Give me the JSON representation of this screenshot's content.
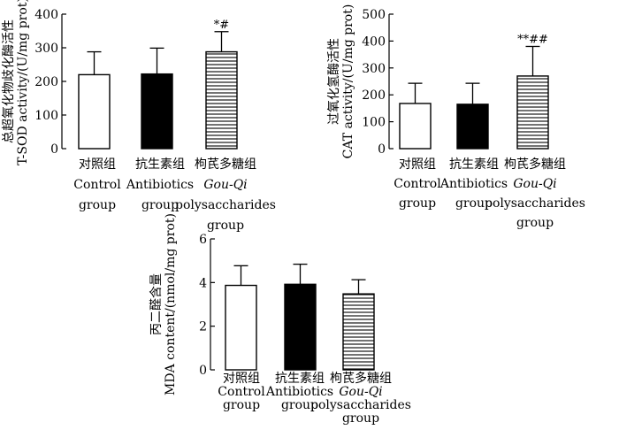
{
  "chart_data": [
    {
      "type": "bar",
      "ylabel_cn": "总超氧化物歧化酶活性",
      "ylabel_en": "T-SOD activity/(U/mg prot)",
      "ylim": [
        0,
        400
      ],
      "yticks": [
        0,
        100,
        200,
        300,
        400
      ],
      "categories": [
        {
          "lines": [
            "对照组",
            "Control",
            "group"
          ],
          "italic": [
            false,
            false,
            false
          ]
        },
        {
          "lines": [
            "抗生素组",
            "Antibiotics",
            "group"
          ],
          "italic": [
            false,
            false,
            false
          ]
        },
        {
          "lines": [
            "枸芪多糖组",
            "Gou-Qi",
            "polysaccharides",
            "group"
          ],
          "italic": [
            false,
            true,
            false,
            false
          ]
        }
      ],
      "values": [
        220,
        222,
        288
      ],
      "errors": [
        68,
        77,
        60
      ],
      "fills": [
        "open",
        "solid",
        "hatched"
      ],
      "annotations": [
        "",
        "",
        "*#"
      ]
    },
    {
      "type": "bar",
      "ylabel_cn": "过氧化氢酶活性",
      "ylabel_en": "CAT activity/(U/mg prot)",
      "ylim": [
        0,
        500
      ],
      "yticks": [
        0,
        100,
        200,
        300,
        400,
        500
      ],
      "categories": [
        {
          "lines": [
            "对照组",
            "Control",
            "group"
          ],
          "italic": [
            false,
            false,
            false
          ]
        },
        {
          "lines": [
            "抗生素组",
            "Antibiotics",
            "group"
          ],
          "italic": [
            false,
            false,
            false
          ]
        },
        {
          "lines": [
            "枸芪多糖组",
            "Gou-Qi",
            "polysaccharides",
            "group"
          ],
          "italic": [
            false,
            true,
            false,
            false
          ]
        }
      ],
      "values": [
        168,
        165,
        270
      ],
      "errors": [
        75,
        78,
        110
      ],
      "fills": [
        "open",
        "solid",
        "hatched"
      ],
      "annotations": [
        "",
        "",
        "**##"
      ]
    },
    {
      "type": "bar",
      "ylabel_cn": "丙二醛含量",
      "ylabel_en": "MDA content/(nmol/mg prot)",
      "ylim": [
        0,
        6
      ],
      "yticks": [
        0,
        2,
        4,
        6
      ],
      "categories": [
        {
          "lines": [
            "对照组",
            "Control",
            "group"
          ],
          "italic": [
            false,
            false,
            false
          ]
        },
        {
          "lines": [
            "抗生素组",
            "Antibiotics",
            "group"
          ],
          "italic": [
            false,
            false,
            false
          ]
        },
        {
          "lines": [
            "枸芪多糖组",
            "Gou-Qi",
            "polysaccharides",
            "group"
          ],
          "italic": [
            false,
            true,
            false,
            false
          ]
        }
      ],
      "values": [
        3.87,
        3.92,
        3.48
      ],
      "errors": [
        0.9,
        0.92,
        0.65
      ],
      "fills": [
        "open",
        "solid",
        "hatched"
      ],
      "annotations": [
        "",
        "",
        ""
      ]
    }
  ]
}
